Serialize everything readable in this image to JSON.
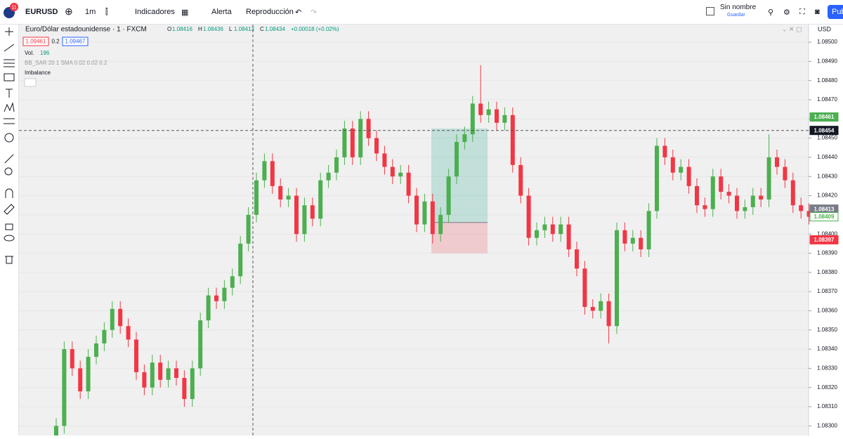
{
  "toolbar": {
    "badge": "11",
    "symbol": "EURUSD",
    "interval": "1m",
    "indicators": "Indicadores",
    "alert": "Alerta",
    "replay": "Reproducción",
    "layout_name": "Sin nombre",
    "save": "Guardar",
    "publish": "Pub"
  },
  "legend": {
    "title": "Euro/Dólar estadounidense · 1 · FXCM",
    "ohlc": [
      {
        "k": "O",
        "v": "1.08416"
      },
      {
        "k": "H",
        "v": "1.08436"
      },
      {
        "k": "L",
        "v": "1.08413"
      },
      {
        "k": "C",
        "v": "1.08434"
      }
    ],
    "change": "+0.00018 (+0.02%)",
    "bid": "1.09461",
    "spread": "0.2",
    "ask": "1.09467",
    "vol_label": "Vol.",
    "vol_value": "196",
    "indicator": "BB_SAR 20 1 SMA 0.02 0.02 0.2",
    "imbalance": "Imbalance"
  },
  "currency": "USD",
  "chart_data": {
    "type": "candlestick",
    "up_color": "#4caf50",
    "down_color": "#f23645",
    "grid": true,
    "ylim": [
      1.08295,
      1.08511
    ],
    "yticks": [
      {
        "value": 1.083,
        "label": "1.08300"
      },
      {
        "value": 1.0831,
        "label": "1.08310"
      },
      {
        "value": 1.0832,
        "label": "1.08320"
      },
      {
        "value": 1.0833,
        "label": "1.08330"
      },
      {
        "value": 1.0834,
        "label": "1.08340"
      },
      {
        "value": 1.0835,
        "label": "1.08350"
      },
      {
        "value": 1.0836,
        "label": "1.08360"
      },
      {
        "value": 1.0837,
        "label": "1.08370"
      },
      {
        "value": 1.0838,
        "label": "1.08380"
      },
      {
        "value": 1.0839,
        "label": "1.08390"
      },
      {
        "value": 1.084,
        "label": "1.08400"
      },
      {
        "value": 1.0841,
        "label": "1.08410"
      },
      {
        "value": 1.0842,
        "label": "1.08420"
      },
      {
        "value": 1.0843,
        "label": "1.08430"
      },
      {
        "value": 1.0844,
        "label": "1.08440"
      },
      {
        "value": 1.0845,
        "label": "1.08450"
      },
      {
        "value": 1.0846,
        "label": "1.08460"
      },
      {
        "value": 1.0847,
        "label": "1.08470"
      },
      {
        "value": 1.0848,
        "label": "1.08480"
      },
      {
        "value": 1.0849,
        "label": "1.08490"
      },
      {
        "value": 1.085,
        "label": "1.08500"
      }
    ],
    "open": [
      1.0829,
      1.083,
      1.0834,
      1.0833,
      1.08318,
      1.08336,
      1.08343,
      1.0835,
      1.08361,
      1.08352,
      1.08345,
      1.08328,
      1.0832,
      1.08333,
      1.08324,
      1.0833,
      1.08325,
      1.08314,
      1.0833,
      1.08355,
      1.08368,
      1.08365,
      1.08372,
      1.08378,
      1.08395,
      1.0841,
      1.08428,
      1.08438,
      1.08425,
      1.08418,
      1.0842,
      1.084,
      1.08415,
      1.08408,
      1.08428,
      1.08432,
      1.0844,
      1.08455,
      1.0844,
      1.0846,
      1.0845,
      1.08442,
      1.08435,
      1.0843,
      1.08432,
      1.0842,
      1.08405,
      1.08417,
      1.084,
      1.0841,
      1.0843,
      1.08448,
      1.08452,
      1.08468,
      1.08462,
      1.08465,
      1.08458,
      1.08462,
      1.08436,
      1.0842,
      1.08398,
      1.08402,
      1.08405,
      1.084,
      1.08405,
      1.08392,
      1.08382,
      1.08362,
      1.0836,
      1.08365,
      1.08352,
      1.08402,
      1.08395,
      1.08398,
      1.08392,
      1.08412,
      1.08446,
      1.0844,
      1.08432,
      1.08435,
      1.08425,
      1.08415,
      1.08413,
      1.0843,
      1.08422,
      1.0842,
      1.08412,
      1.08414,
      1.0842,
      1.08418,
      1.0844,
      1.08435,
      1.08428,
      1.08415,
      1.08412
    ],
    "high": [
      1.08304,
      1.08344,
      1.08344,
      1.08334,
      1.0834,
      1.08347,
      1.08354,
      1.08365,
      1.08365,
      1.08356,
      1.08349,
      1.08332,
      1.08337,
      1.08337,
      1.08334,
      1.08334,
      1.08329,
      1.08334,
      1.08359,
      1.08372,
      1.08372,
      1.08376,
      1.08382,
      1.08399,
      1.08414,
      1.08432,
      1.08442,
      1.08442,
      1.08429,
      1.08424,
      1.08424,
      1.08419,
      1.08419,
      1.08432,
      1.08436,
      1.08444,
      1.08459,
      1.08459,
      1.08464,
      1.08464,
      1.08454,
      1.08446,
      1.08439,
      1.08436,
      1.08436,
      1.08424,
      1.08421,
      1.08421,
      1.08414,
      1.08434,
      1.08452,
      1.08456,
      1.08472,
      1.08488,
      1.08469,
      1.08469,
      1.08466,
      1.08466,
      1.0844,
      1.08424,
      1.08406,
      1.08409,
      1.08409,
      1.08409,
      1.08409,
      1.08396,
      1.08386,
      1.08366,
      1.08369,
      1.08369,
      1.08406,
      1.08406,
      1.08402,
      1.08402,
      1.08416,
      1.0845,
      1.0845,
      1.08444,
      1.08439,
      1.08439,
      1.08429,
      1.08419,
      1.08434,
      1.08434,
      1.08426,
      1.08424,
      1.08418,
      1.08424,
      1.08424,
      1.08452,
      1.08444,
      1.08439,
      1.08432,
      1.08419,
      1.08416
    ],
    "low": [
      1.08286,
      1.08296,
      1.08326,
      1.08314,
      1.08314,
      1.08332,
      1.08339,
      1.08346,
      1.08348,
      1.08341,
      1.08324,
      1.08316,
      1.08316,
      1.0832,
      1.0832,
      1.08321,
      1.0831,
      1.0831,
      1.08326,
      1.08351,
      1.08361,
      1.08361,
      1.08368,
      1.08374,
      1.08391,
      1.08406,
      1.08424,
      1.08421,
      1.08414,
      1.08414,
      1.08396,
      1.08396,
      1.08404,
      1.08404,
      1.08424,
      1.08428,
      1.08436,
      1.08436,
      1.08436,
      1.08446,
      1.08438,
      1.08431,
      1.08426,
      1.08426,
      1.08416,
      1.08401,
      1.08401,
      1.08395,
      1.08396,
      1.08406,
      1.08426,
      1.08444,
      1.08448,
      1.08458,
      1.08458,
      1.08454,
      1.08454,
      1.08432,
      1.08416,
      1.08394,
      1.08394,
      1.08398,
      1.08396,
      1.08396,
      1.08388,
      1.08378,
      1.08358,
      1.08356,
      1.08356,
      1.08343,
      1.08348,
      1.08391,
      1.08391,
      1.08388,
      1.08388,
      1.08408,
      1.08436,
      1.08428,
      1.08428,
      1.08421,
      1.08411,
      1.08409,
      1.08409,
      1.08418,
      1.08416,
      1.08408,
      1.08408,
      1.0841,
      1.08414,
      1.08414,
      1.08431,
      1.08424,
      1.08411,
      1.08408,
      1.08405
    ],
    "close": [
      1.083,
      1.0834,
      1.0833,
      1.08318,
      1.08336,
      1.08343,
      1.0835,
      1.08361,
      1.08352,
      1.08345,
      1.08328,
      1.0832,
      1.08333,
      1.08324,
      1.0833,
      1.08325,
      1.08314,
      1.0833,
      1.08355,
      1.08368,
      1.08365,
      1.08372,
      1.08378,
      1.08395,
      1.0841,
      1.08428,
      1.08438,
      1.08425,
      1.08418,
      1.0842,
      1.084,
      1.08415,
      1.08408,
      1.08428,
      1.08432,
      1.0844,
      1.08455,
      1.0844,
      1.0846,
      1.0845,
      1.08442,
      1.08435,
      1.0843,
      1.08432,
      1.0842,
      1.08405,
      1.08417,
      1.084,
      1.0841,
      1.0843,
      1.08448,
      1.08452,
      1.08468,
      1.08462,
      1.08465,
      1.08458,
      1.08462,
      1.08436,
      1.0842,
      1.08398,
      1.08402,
      1.08405,
      1.084,
      1.08405,
      1.08392,
      1.08382,
      1.08362,
      1.0836,
      1.08365,
      1.08352,
      1.08402,
      1.08395,
      1.08398,
      1.08392,
      1.08412,
      1.08446,
      1.0844,
      1.08432,
      1.08435,
      1.08425,
      1.08415,
      1.08413,
      1.0843,
      1.08422,
      1.0842,
      1.08412,
      1.08414,
      1.0842,
      1.08418,
      1.0844,
      1.08435,
      1.08428,
      1.08415,
      1.08412,
      1.08409
    ],
    "position": {
      "target": 1.08455,
      "entry": 1.08406,
      "stop": 1.0839
    },
    "crosshair": 1.08454,
    "price_labels": [
      {
        "value": 1.08461,
        "color": "#4caf50",
        "filled": true
      },
      {
        "value": 1.08454,
        "color": "#131722",
        "filled": true
      },
      {
        "value": 1.08413,
        "color": "#787b86",
        "filled": true
      },
      {
        "value": 1.08409,
        "color": "#4caf50",
        "filled": false
      },
      {
        "value": 1.08397,
        "color": "#f23645",
        "filled": true
      }
    ]
  }
}
